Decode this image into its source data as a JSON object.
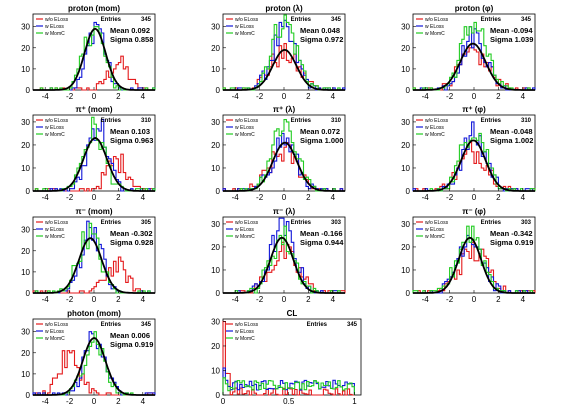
{
  "colors": {
    "red": "#e41a1c",
    "blue": "#1016d8",
    "green": "#22cc22",
    "fit": "#000000"
  },
  "legend": [
    "w/o ELoss",
    "w ELoss",
    "w MomC"
  ],
  "chart_data": [
    {
      "type": "histogram",
      "title": "proton (mom)",
      "entries": "345",
      "mean": "Mean 0.092",
      "sigma": "Sigma 0.858",
      "xlim": [
        -5,
        5
      ],
      "ylim": [
        0,
        36
      ],
      "xticks": [
        -4,
        -2,
        0,
        2,
        4
      ],
      "yticks": [
        0,
        10,
        20,
        30
      ],
      "series": [
        {
          "color": "red",
          "mu": 2.0,
          "sig": 0.8,
          "peak": 13
        },
        {
          "color": "blue",
          "mu": 0.2,
          "sig": 0.7,
          "peak": 32
        },
        {
          "color": "green",
          "mu": 0.0,
          "sig": 0.8,
          "peak": 30
        }
      ],
      "fit": {
        "mu": 0.09,
        "sig": 0.86,
        "peak": 29
      }
    },
    {
      "type": "histogram",
      "title": "proton (λ)",
      "entries": "345",
      "mean": "Mean 0.048",
      "sigma": "Sigma 0.972",
      "xlim": [
        -5,
        5
      ],
      "ylim": [
        0,
        36
      ],
      "xticks": [
        -4,
        -2,
        0,
        2,
        4
      ],
      "yticks": [
        0,
        10,
        20,
        30
      ],
      "series": [
        {
          "color": "red",
          "mu": 0.0,
          "sig": 1.2,
          "peak": 17
        },
        {
          "color": "blue",
          "mu": 0.0,
          "sig": 1.0,
          "peak": 27
        },
        {
          "color": "green",
          "mu": 0.0,
          "sig": 1.0,
          "peak": 33
        }
      ],
      "fit": {
        "mu": 0.05,
        "sig": 0.97,
        "peak": 19
      }
    },
    {
      "type": "histogram",
      "title": "proton (φ)",
      "entries": "345",
      "mean": "Mean -0.094",
      "sigma": "Sigma 1.039",
      "xlim": [
        -5,
        5
      ],
      "ylim": [
        0,
        36
      ],
      "xticks": [
        -4,
        -2,
        0,
        2,
        4
      ],
      "yticks": [
        0,
        10,
        20,
        30
      ],
      "series": [
        {
          "color": "red",
          "mu": 0.0,
          "sig": 1.2,
          "peak": 17
        },
        {
          "color": "blue",
          "mu": 0.0,
          "sig": 1.0,
          "peak": 26
        },
        {
          "color": "green",
          "mu": 0.0,
          "sig": 1.0,
          "peak": 32
        }
      ],
      "fit": {
        "mu": -0.09,
        "sig": 1.04,
        "peak": 22
      }
    },
    {
      "type": "histogram",
      "title": "π⁺ (mom)",
      "entries": "310",
      "mean": "Mean 0.103",
      "sigma": "Sigma 0.963",
      "xlim": [
        -5,
        5
      ],
      "ylim": [
        0,
        33
      ],
      "xticks": [
        -4,
        -2,
        0,
        2,
        4
      ],
      "yticks": [
        0,
        10,
        20,
        30
      ],
      "series": [
        {
          "color": "red",
          "mu": 1.9,
          "sig": 0.9,
          "peak": 13
        },
        {
          "color": "blue",
          "mu": 0.3,
          "sig": 0.8,
          "peak": 30
        },
        {
          "color": "green",
          "mu": 0.0,
          "sig": 0.9,
          "peak": 26
        }
      ],
      "fit": {
        "mu": 0.1,
        "sig": 0.96,
        "peak": 23
      }
    },
    {
      "type": "histogram",
      "title": "π⁺ (λ)",
      "entries": "310",
      "mean": "Mean 0.072",
      "sigma": "Sigma 1.000",
      "xlim": [
        -5,
        5
      ],
      "ylim": [
        0,
        33
      ],
      "xticks": [
        -4,
        -2,
        0,
        2,
        4
      ],
      "yticks": [
        0,
        10,
        20,
        30
      ],
      "series": [
        {
          "color": "red",
          "mu": 0.0,
          "sig": 1.2,
          "peak": 17
        },
        {
          "color": "blue",
          "mu": 0.0,
          "sig": 1.0,
          "peak": 22
        },
        {
          "color": "green",
          "mu": 0.0,
          "sig": 1.0,
          "peak": 30
        }
      ],
      "fit": {
        "mu": 0.07,
        "sig": 1.0,
        "peak": 21
      }
    },
    {
      "type": "histogram",
      "title": "π⁺ (φ)",
      "entries": "310",
      "mean": "Mean -0.048",
      "sigma": "Sigma 1.002",
      "xlim": [
        -5,
        5
      ],
      "ylim": [
        0,
        33
      ],
      "xticks": [
        -4,
        -2,
        0,
        2,
        4
      ],
      "yticks": [
        0,
        10,
        20,
        30
      ],
      "series": [
        {
          "color": "red",
          "mu": 0.0,
          "sig": 1.2,
          "peak": 17
        },
        {
          "color": "blue",
          "mu": 0.0,
          "sig": 1.0,
          "peak": 24
        },
        {
          "color": "green",
          "mu": 0.0,
          "sig": 1.0,
          "peak": 28
        }
      ],
      "fit": {
        "mu": -0.05,
        "sig": 1.0,
        "peak": 22
      }
    },
    {
      "type": "histogram",
      "title": "π⁻ (mom)",
      "entries": "305",
      "mean": "Mean -0.302",
      "sigma": "Sigma 0.928",
      "xlim": [
        -5,
        5
      ],
      "ylim": [
        0,
        36
      ],
      "xticks": [
        -4,
        -2,
        0,
        2,
        4
      ],
      "yticks": [
        0,
        10,
        20,
        30
      ],
      "series": [
        {
          "color": "red",
          "mu": 1.8,
          "sig": 0.9,
          "peak": 13
        },
        {
          "color": "blue",
          "mu": -0.2,
          "sig": 0.8,
          "peak": 32
        },
        {
          "color": "green",
          "mu": -0.4,
          "sig": 0.9,
          "peak": 28
        }
      ],
      "fit": {
        "mu": -0.3,
        "sig": 0.93,
        "peak": 26
      }
    },
    {
      "type": "histogram",
      "title": "π⁻ (λ)",
      "entries": "303",
      "mean": "Mean -0.166",
      "sigma": "Sigma 0.944",
      "xlim": [
        -5,
        5
      ],
      "ylim": [
        0,
        33
      ],
      "xticks": [
        -4,
        -2,
        0,
        2,
        4
      ],
      "yticks": [
        0,
        10,
        20,
        30
      ],
      "series": [
        {
          "color": "red",
          "mu": 0.0,
          "sig": 1.2,
          "peak": 17
        },
        {
          "color": "blue",
          "mu": -0.1,
          "sig": 1.0,
          "peak": 28
        },
        {
          "color": "green",
          "mu": -0.1,
          "sig": 1.0,
          "peak": 24
        }
      ],
      "fit": {
        "mu": -0.17,
        "sig": 0.94,
        "peak": 24
      }
    },
    {
      "type": "histogram",
      "title": "π⁻ (φ)",
      "entries": "303",
      "mean": "Mean -0.342",
      "sigma": "Sigma 0.919",
      "xlim": [
        -5,
        5
      ],
      "ylim": [
        0,
        33
      ],
      "xticks": [
        -4,
        -2,
        0,
        2,
        4
      ],
      "yticks": [
        0,
        10,
        20,
        30
      ],
      "series": [
        {
          "color": "red",
          "mu": 0.0,
          "sig": 1.2,
          "peak": 18
        },
        {
          "color": "blue",
          "mu": -0.3,
          "sig": 1.0,
          "peak": 26
        },
        {
          "color": "green",
          "mu": -0.3,
          "sig": 1.0,
          "peak": 27
        }
      ],
      "fit": {
        "mu": -0.34,
        "sig": 0.92,
        "peak": 24
      }
    },
    {
      "type": "histogram",
      "title": "photon (mom)",
      "entries": "345",
      "mean": "Mean 0.006",
      "sigma": "Sigma 0.919",
      "xlim": [
        -5,
        5
      ],
      "ylim": [
        0,
        36
      ],
      "xticks": [
        -4,
        -2,
        0,
        2,
        4
      ],
      "yticks": [
        0,
        10,
        20,
        30
      ],
      "series": [
        {
          "color": "red",
          "mu": -2.0,
          "sig": 0.9,
          "peak": 18
        },
        {
          "color": "blue",
          "mu": 0.1,
          "sig": 0.8,
          "peak": 30
        },
        {
          "color": "green",
          "mu": 0.0,
          "sig": 0.8,
          "peak": 28
        }
      ],
      "fit": {
        "mu": 0.01,
        "sig": 0.92,
        "peak": 27
      }
    },
    {
      "type": "histogram",
      "title": "CL",
      "entries": "345",
      "mean": "",
      "sigma": "",
      "xlim": [
        0,
        1.05
      ],
      "ylim": [
        0,
        31
      ],
      "xticks": [
        0,
        0.5,
        1
      ],
      "yticks": [
        0,
        10,
        20,
        30
      ],
      "series": [
        {
          "color": "red",
          "flat": true,
          "spike": 30,
          "level": 1
        },
        {
          "color": "blue",
          "flat": true,
          "spike": 11,
          "level": 4
        },
        {
          "color": "green",
          "flat": true,
          "spike": 7,
          "level": 4
        }
      ],
      "fit": null
    }
  ]
}
